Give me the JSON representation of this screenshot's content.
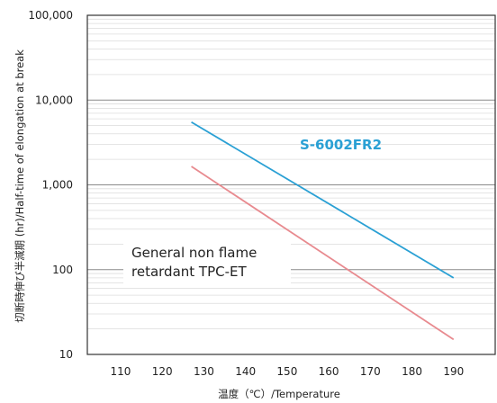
{
  "chart_data": {
    "type": "line",
    "xlabel": "温度（℃）/Temperature",
    "ylabel": "切断時伸び半減期 (hr)/Half-time of elongation at break",
    "x_ticks": [
      "110",
      "120",
      "130",
      "140",
      "150",
      "160",
      "170",
      "180",
      "190"
    ],
    "y_ticks": [
      "10",
      "100",
      "1,000",
      "10,000",
      "100,000"
    ],
    "xlim": [
      102,
      200
    ],
    "ylim": [
      10,
      100000
    ],
    "y_scale": "log",
    "grid": "horizontal",
    "series": [
      {
        "name": "S-6002FR2",
        "color": "#2aa0d4",
        "x": [
          127,
          190
        ],
        "y": [
          5500,
          80
        ]
      },
      {
        "name": "General non flame retardant TPC-ET",
        "color": "#e88a8f",
        "x": [
          127,
          190
        ],
        "y": [
          1650,
          15
        ]
      }
    ],
    "annotations": {
      "s6002": "S-6002FR2",
      "general_line1": "General non flame",
      "general_line2": "retardant TPC-ET"
    }
  }
}
